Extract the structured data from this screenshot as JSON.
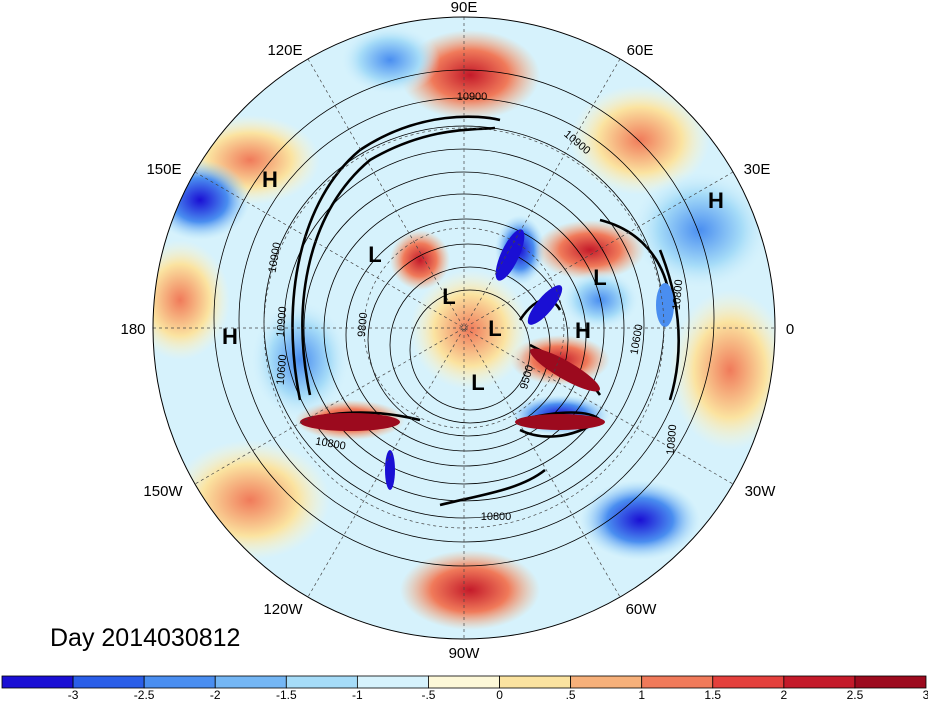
{
  "map": {
    "day_label": "Day 2014030812",
    "longitude_labels": [
      "90E",
      "60E",
      "30E",
      "0",
      "30W",
      "60W",
      "90W",
      "120W",
      "150W",
      "180",
      "150E",
      "120E"
    ],
    "pressure_systems": [
      "H",
      "H",
      "H",
      "H",
      "L",
      "L",
      "L",
      "L",
      "L"
    ],
    "contour_labels": [
      "10900",
      "10900",
      "10900",
      "10900",
      "10800",
      "10800",
      "10800",
      "10800",
      "10600",
      "10600",
      "9800",
      "9500"
    ]
  },
  "colorbar": {
    "tick_labels": [
      "-3",
      "-2.5",
      "-2",
      "-1.5",
      "-1",
      "-.5",
      "0",
      ".5",
      "1",
      "1.5",
      "2",
      "2.5",
      "3"
    ],
    "colors": [
      "#1a0fd4",
      "#2a5ee8",
      "#4a8ef0",
      "#74b6f4",
      "#a6dcf8",
      "#d6f2fc",
      "#fdf8d8",
      "#fbe3a0",
      "#f6b07a",
      "#f07a5a",
      "#e4403c",
      "#c41a2a",
      "#9c0a1e"
    ]
  }
}
